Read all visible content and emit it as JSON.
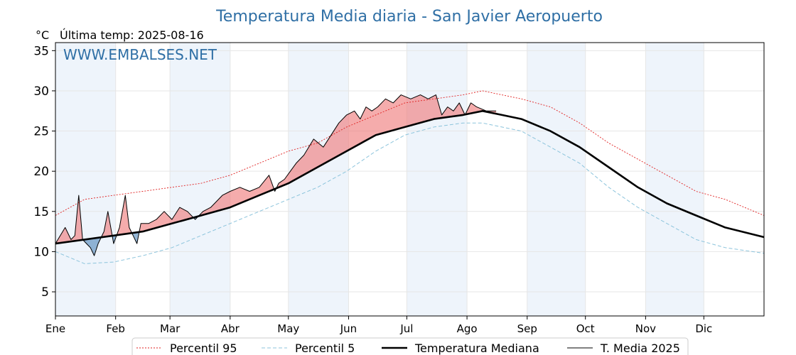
{
  "chart_data": {
    "type": "line",
    "title": "Temperatura Media diaria - San Javier Aeropuerto",
    "unit_label": "°C",
    "last_temp_label": "Última temp: 2025-08-16",
    "watermark": "WWW.EMBALSES.NET",
    "ylim": [
      2,
      36
    ],
    "yticks": [
      "5",
      "10",
      "15",
      "20",
      "25",
      "30",
      "35"
    ],
    "x_range_days": [
      0,
      365
    ],
    "month_ticks": [
      "Ene",
      "Feb",
      "Mar",
      "Abr",
      "May",
      "Jun",
      "Jul",
      "Ago",
      "Sep",
      "Oct",
      "Nov",
      "Dic"
    ],
    "grid": true,
    "legend_position": "bottom",
    "colors": {
      "title": "#2f6fa5",
      "p95": "#e02020",
      "p5": "#8cc4dc",
      "median": "#000000",
      "current": "#000000",
      "above_fill": "#f08080",
      "below_fill": "#5b8fbe",
      "band": "#eef4fb"
    },
    "series": [
      {
        "name": "Percentil 95",
        "style": "dotted-red",
        "points": [
          [
            0,
            14.5
          ],
          [
            15,
            16.5
          ],
          [
            30,
            17.0
          ],
          [
            45,
            17.5
          ],
          [
            60,
            18.0
          ],
          [
            75,
            18.5
          ],
          [
            90,
            19.5
          ],
          [
            105,
            21.0
          ],
          [
            120,
            22.5
          ],
          [
            135,
            23.5
          ],
          [
            150,
            25.5
          ],
          [
            165,
            27.0
          ],
          [
            180,
            28.5
          ],
          [
            195,
            29.0
          ],
          [
            210,
            29.5
          ],
          [
            220,
            30.0
          ],
          [
            230,
            29.5
          ],
          [
            240,
            29.0
          ],
          [
            255,
            28.0
          ],
          [
            270,
            26.0
          ],
          [
            285,
            23.5
          ],
          [
            300,
            21.5
          ],
          [
            315,
            19.5
          ],
          [
            330,
            17.5
          ],
          [
            345,
            16.5
          ],
          [
            365,
            14.5
          ]
        ]
      },
      {
        "name": "Percentil 5",
        "style": "dashed-lightblue",
        "points": [
          [
            0,
            10.0
          ],
          [
            15,
            8.5
          ],
          [
            30,
            8.7
          ],
          [
            45,
            9.5
          ],
          [
            60,
            10.5
          ],
          [
            75,
            12.0
          ],
          [
            90,
            13.5
          ],
          [
            105,
            15.0
          ],
          [
            120,
            16.5
          ],
          [
            135,
            18.0
          ],
          [
            150,
            20.0
          ],
          [
            165,
            22.5
          ],
          [
            180,
            24.5
          ],
          [
            195,
            25.5
          ],
          [
            210,
            26.0
          ],
          [
            220,
            26.0
          ],
          [
            230,
            25.5
          ],
          [
            240,
            25.0
          ],
          [
            255,
            23.0
          ],
          [
            270,
            21.0
          ],
          [
            285,
            18.0
          ],
          [
            300,
            15.5
          ],
          [
            315,
            13.5
          ],
          [
            330,
            11.5
          ],
          [
            345,
            10.5
          ],
          [
            365,
            9.8
          ]
        ]
      },
      {
        "name": "Temperatura Mediana",
        "style": "thick-black",
        "points": [
          [
            0,
            11.0
          ],
          [
            15,
            11.5
          ],
          [
            30,
            12.0
          ],
          [
            45,
            12.5
          ],
          [
            60,
            13.5
          ],
          [
            75,
            14.5
          ],
          [
            90,
            15.5
          ],
          [
            105,
            17.0
          ],
          [
            120,
            18.5
          ],
          [
            135,
            20.5
          ],
          [
            150,
            22.5
          ],
          [
            165,
            24.5
          ],
          [
            180,
            25.5
          ],
          [
            195,
            26.5
          ],
          [
            210,
            27.0
          ],
          [
            220,
            27.5
          ],
          [
            230,
            27.0
          ],
          [
            240,
            26.5
          ],
          [
            255,
            25.0
          ],
          [
            270,
            23.0
          ],
          [
            285,
            20.5
          ],
          [
            300,
            18.0
          ],
          [
            315,
            16.0
          ],
          [
            330,
            14.5
          ],
          [
            345,
            13.0
          ],
          [
            365,
            11.8
          ]
        ]
      },
      {
        "name": "T. Media 2025",
        "style": "thin-black",
        "points": [
          [
            0,
            11.0
          ],
          [
            5,
            13.0
          ],
          [
            8,
            11.5
          ],
          [
            10,
            12.0
          ],
          [
            12,
            17.0
          ],
          [
            14,
            11.5
          ],
          [
            16,
            11.0
          ],
          [
            18,
            10.5
          ],
          [
            20,
            9.5
          ],
          [
            22,
            11.0
          ],
          [
            25,
            12.5
          ],
          [
            27,
            15.0
          ],
          [
            30,
            11.0
          ],
          [
            33,
            13.0
          ],
          [
            36,
            17.0
          ],
          [
            38,
            13.0
          ],
          [
            40,
            12.0
          ],
          [
            42,
            11.0
          ],
          [
            44,
            13.5
          ],
          [
            48,
            13.5
          ],
          [
            52,
            14.0
          ],
          [
            56,
            15.0
          ],
          [
            60,
            14.0
          ],
          [
            64,
            15.5
          ],
          [
            68,
            15.0
          ],
          [
            72,
            14.0
          ],
          [
            76,
            15.0
          ],
          [
            80,
            15.5
          ],
          [
            86,
            17.0
          ],
          [
            90,
            17.5
          ],
          [
            95,
            18.0
          ],
          [
            100,
            17.5
          ],
          [
            105,
            18.0
          ],
          [
            110,
            19.5
          ],
          [
            113,
            17.5
          ],
          [
            115,
            18.5
          ],
          [
            118,
            19.0
          ],
          [
            121,
            20.0
          ],
          [
            124,
            21.0
          ],
          [
            128,
            22.0
          ],
          [
            133,
            24.0
          ],
          [
            138,
            23.0
          ],
          [
            142,
            24.5
          ],
          [
            146,
            26.0
          ],
          [
            150,
            27.0
          ],
          [
            154,
            27.5
          ],
          [
            157,
            26.5
          ],
          [
            160,
            28.0
          ],
          [
            163,
            27.5
          ],
          [
            166,
            28.0
          ],
          [
            170,
            29.0
          ],
          [
            174,
            28.5
          ],
          [
            178,
            29.5
          ],
          [
            183,
            29.0
          ],
          [
            188,
            29.5
          ],
          [
            192,
            29.0
          ],
          [
            196,
            29.5
          ],
          [
            199,
            27.0
          ],
          [
            202,
            28.0
          ],
          [
            205,
            27.5
          ],
          [
            208,
            28.5
          ],
          [
            211,
            27.0
          ],
          [
            214,
            28.5
          ],
          [
            217,
            28.0
          ],
          [
            222,
            27.5
          ],
          [
            227,
            27.5
          ]
        ]
      }
    ],
    "legend": [
      {
        "label": "Percentil 95",
        "style": "dotted-red"
      },
      {
        "label": "Percentil 5",
        "style": "dashed-lightblue"
      },
      {
        "label": "Temperatura Mediana",
        "style": "thick-black"
      },
      {
        "label": "T. Media 2025",
        "style": "thin-black"
      }
    ]
  }
}
